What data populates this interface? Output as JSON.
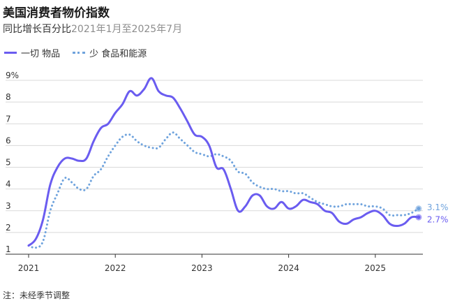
{
  "title": "美国消费者物价指数",
  "subtitle_strong": "同比增长百分比",
  "subtitle_muted": "2021年1月至2025年7月",
  "footnote": "注：未经季节调整",
  "legend": [
    {
      "label": "一切 物品",
      "style": "solid",
      "color": "#6a5cf0"
    },
    {
      "label": "少 食品和能源",
      "style": "dotted",
      "color": "#6fa3dd"
    }
  ],
  "chart_data": {
    "type": "line",
    "xlim": [
      2021.0,
      2025.6
    ],
    "ylim": [
      1,
      9
    ],
    "yticks": [
      1,
      2,
      3,
      4,
      5,
      6,
      7,
      8,
      9
    ],
    "ytick_labels": [
      "1",
      "2",
      "3",
      "4",
      "5",
      "6",
      "7",
      "8",
      "9%"
    ],
    "xticks": [
      2021,
      2022,
      2023,
      2024,
      2025
    ],
    "xtick_labels": [
      "2021",
      "2022",
      "2023",
      "2024",
      "2025"
    ],
    "grid": true,
    "legend_position": "top-left",
    "series": [
      {
        "name": "一切 物品",
        "style": "solid",
        "color": "#6a5cf0",
        "end_label": "2.7%",
        "values": [
          1.4,
          1.7,
          2.6,
          4.2,
          5.0,
          5.4,
          5.4,
          5.3,
          5.4,
          6.2,
          6.8,
          7.0,
          7.5,
          7.9,
          8.5,
          8.3,
          8.6,
          9.1,
          8.5,
          8.3,
          8.2,
          7.7,
          7.1,
          6.5,
          6.4,
          6.0,
          5.0,
          4.9,
          4.0,
          3.0,
          3.2,
          3.7,
          3.7,
          3.2,
          3.1,
          3.4,
          3.1,
          3.2,
          3.5,
          3.4,
          3.3,
          3.0,
          2.9,
          2.5,
          2.4,
          2.6,
          2.7,
          2.9,
          3.0,
          2.8,
          2.4,
          2.3,
          2.4,
          2.7,
          2.7
        ]
      },
      {
        "name": "少 食品和能源",
        "style": "dotted",
        "color": "#6fa3dd",
        "end_label": "3.1%",
        "values": [
          1.4,
          1.3,
          1.6,
          3.0,
          3.8,
          4.5,
          4.3,
          4.0,
          4.0,
          4.6,
          4.9,
          5.5,
          6.0,
          6.4,
          6.5,
          6.2,
          6.0,
          5.9,
          5.9,
          6.3,
          6.6,
          6.3,
          6.0,
          5.7,
          5.6,
          5.5,
          5.6,
          5.5,
          5.3,
          4.8,
          4.7,
          4.3,
          4.1,
          4.0,
          4.0,
          3.9,
          3.9,
          3.8,
          3.8,
          3.6,
          3.4,
          3.3,
          3.2,
          3.2,
          3.3,
          3.3,
          3.3,
          3.2,
          3.2,
          3.1,
          2.8,
          2.8,
          2.8,
          2.9,
          3.1
        ]
      }
    ]
  }
}
